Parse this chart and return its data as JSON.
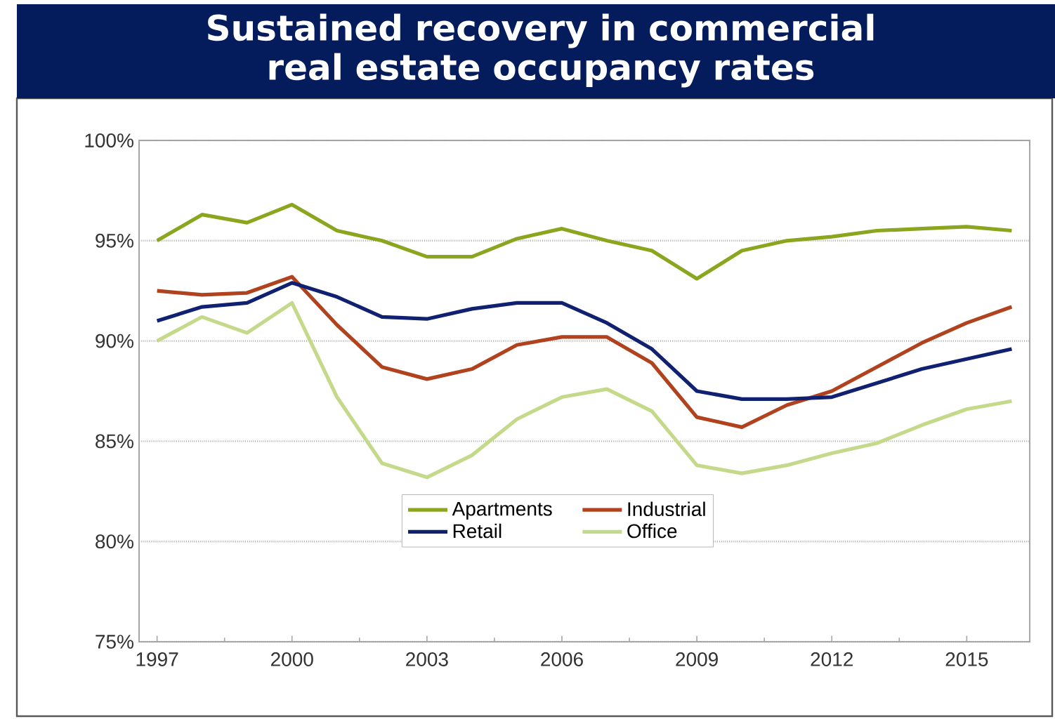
{
  "chart_data": {
    "type": "line",
    "title": "Sustained recovery in commercial real estate occupancy rates",
    "x": [
      1997,
      1998,
      1999,
      2000,
      2001,
      2002,
      2003,
      2004,
      2005,
      2006,
      2007,
      2008,
      2009,
      2010,
      2011,
      2012,
      2013,
      2014,
      2015,
      2016
    ],
    "series": [
      {
        "name": "Apartments",
        "color": "#8aa61f",
        "values": [
          95.0,
          96.3,
          95.9,
          96.8,
          95.5,
          95.0,
          94.2,
          94.2,
          95.1,
          95.6,
          95.0,
          94.5,
          93.1,
          94.5,
          95.0,
          95.2,
          95.5,
          95.6,
          95.7,
          95.5
        ]
      },
      {
        "name": "Industrial",
        "color": "#b0421e",
        "values": [
          92.5,
          92.3,
          92.4,
          93.2,
          90.8,
          88.7,
          88.1,
          88.6,
          89.8,
          90.2,
          90.2,
          88.9,
          86.2,
          85.7,
          86.8,
          87.5,
          88.7,
          89.9,
          90.9,
          91.7
        ]
      },
      {
        "name": "Retail",
        "color": "#0f2170",
        "values": [
          91.0,
          91.7,
          91.9,
          92.9,
          92.2,
          91.2,
          91.1,
          91.6,
          91.9,
          91.9,
          90.9,
          89.6,
          87.5,
          87.1,
          87.1,
          87.2,
          87.9,
          88.6,
          89.1,
          89.6
        ]
      },
      {
        "name": "Office",
        "color": "#c4d98a",
        "values": [
          90.0,
          91.2,
          90.4,
          91.9,
          87.2,
          83.9,
          83.2,
          84.3,
          86.1,
          87.2,
          87.6,
          86.5,
          83.8,
          83.4,
          83.8,
          84.4,
          84.9,
          85.8,
          86.6,
          87.0
        ]
      }
    ],
    "xlim": [
      1996.6,
      2016.4
    ],
    "xticks": [
      1997,
      2000,
      2003,
      2006,
      2009,
      2012,
      2015
    ],
    "ylim": [
      75,
      100
    ],
    "yticks": [
      {
        "value": 75,
        "label": "75%"
      },
      {
        "value": 80,
        "label": "80%"
      },
      {
        "value": 85,
        "label": "85%"
      },
      {
        "value": 90,
        "label": "90%"
      },
      {
        "value": 95,
        "label": "95%"
      },
      {
        "value": 100,
        "label": "100%"
      }
    ],
    "grid": "y",
    "legend": "bottom"
  }
}
